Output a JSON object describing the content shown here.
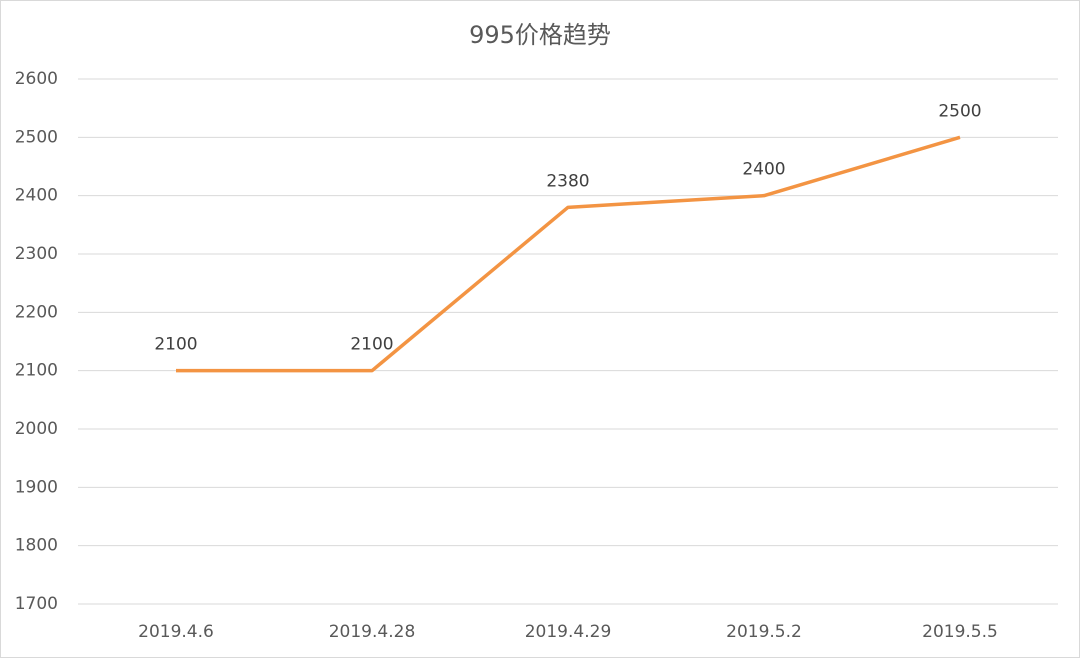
{
  "chart_data": {
    "type": "line",
    "title": "995价格趋势",
    "categories": [
      "2019.4.6",
      "2019.4.28",
      "2019.4.29",
      "2019.5.2",
      "2019.5.5"
    ],
    "series": [
      {
        "color": "#f39443",
        "values": [
          2100,
          2100,
          2380,
          2400,
          2500
        ]
      }
    ],
    "ylim": [
      1700,
      2600
    ],
    "yticks": [
      1700,
      1800,
      1900,
      2000,
      2100,
      2200,
      2300,
      2400,
      2500,
      2600
    ],
    "grid": true,
    "data_labels": true
  }
}
